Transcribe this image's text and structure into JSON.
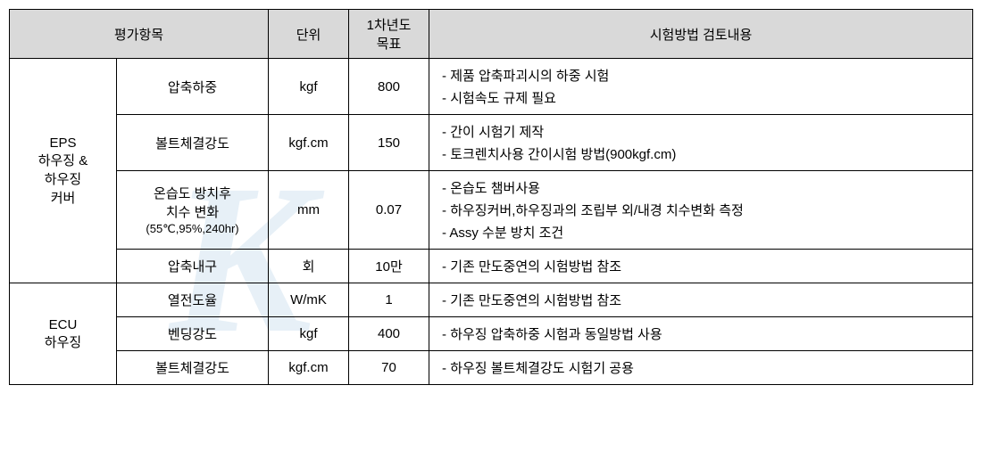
{
  "headers": {
    "eval": "평가항목",
    "unit": "단위",
    "target": "1차년도\n목표",
    "method": "시험방법 검토내용"
  },
  "groups": [
    {
      "name": "EPS\n하우징 &\n하우징\n커버",
      "rows": [
        {
          "item": "압축하중",
          "unit": "kgf",
          "target": "800",
          "methods": [
            "제품 압축파괴시의 하중 시험",
            "시험속도 규제 필요"
          ]
        },
        {
          "item": "볼트체결강도",
          "unit": "kgf.cm",
          "target": "150",
          "methods": [
            "간이 시험기 제작",
            "토크렌치사용 간이시험 방법(900kgf.cm)"
          ]
        },
        {
          "item": "온습도 방치후\n치수 변화",
          "item_sub": "(55℃,95%,240hr)",
          "unit": "mm",
          "target": "0.07",
          "methods": [
            "온습도 챔버사용",
            "하우징커버,하우징과의 조립부 외/내경 치수변화 측정",
            "Assy 수분 방치 조건"
          ]
        },
        {
          "item": "압축내구",
          "unit": "회",
          "target": "10만",
          "methods": [
            "기존 만도중연의 시험방법 참조"
          ]
        }
      ]
    },
    {
      "name": "ECU\n하우징",
      "rows": [
        {
          "item": "열전도율",
          "unit": "W/mK",
          "target": "1",
          "methods": [
            "기존 만도중연의 시험방법 참조"
          ]
        },
        {
          "item": "벤딩강도",
          "unit": "kgf",
          "target": "400",
          "methods": [
            "하우징 압축하중 시험과 동일방법 사용"
          ]
        },
        {
          "item": "볼트체결강도",
          "unit": "kgf.cm",
          "target": "70",
          "methods": [
            "하우징 볼트체결강도 시험기 공용"
          ]
        }
      ]
    }
  ],
  "watermark": "K"
}
